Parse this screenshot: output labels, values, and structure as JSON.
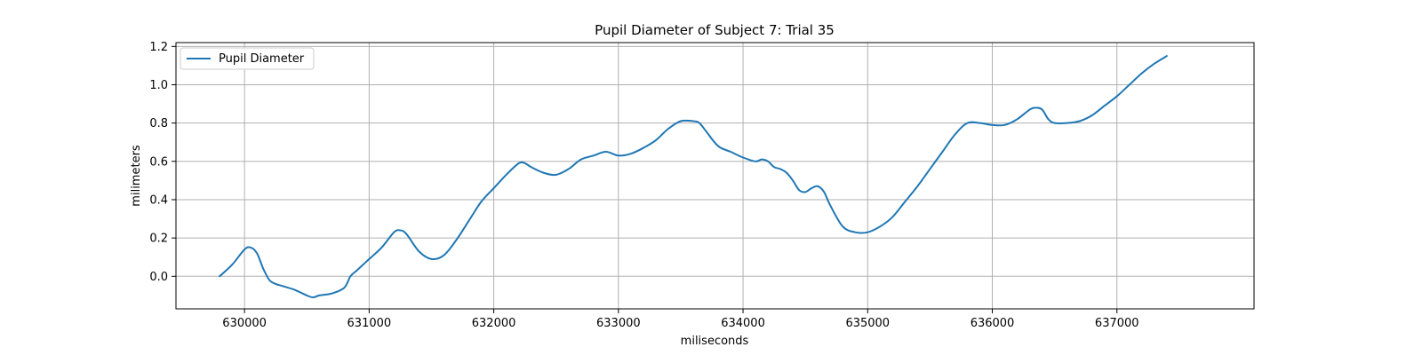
{
  "chart_data": {
    "type": "line",
    "title": "Pupil Diameter of Subject 7: Trial 35",
    "xlabel": "miliseconds",
    "ylabel": "milimeters",
    "xlim": [
      629450,
      638100
    ],
    "ylim": [
      -0.17,
      1.22
    ],
    "xticks": [
      630000,
      631000,
      632000,
      633000,
      634000,
      635000,
      636000,
      637000
    ],
    "xtick_labels": [
      "630000",
      "631000",
      "632000",
      "633000",
      "634000",
      "635000",
      "636000",
      "637000"
    ],
    "yticks": [
      0.0,
      0.2,
      0.4,
      0.6,
      0.8,
      1.0,
      1.2
    ],
    "ytick_labels": [
      "0.0",
      "0.2",
      "0.4",
      "0.6",
      "0.8",
      "1.0",
      "1.2"
    ],
    "grid": true,
    "legend": {
      "placement": "top-left",
      "entries": [
        "Pupil Diameter"
      ]
    },
    "series": [
      {
        "name": "Pupil Diameter",
        "color": "#1f77b4",
        "x": [
          629800,
          629900,
          630000,
          630050,
          630100,
          630150,
          630200,
          630250,
          630300,
          630400,
          630500,
          630550,
          630600,
          630700,
          630800,
          630850,
          630900,
          630950,
          631000,
          631100,
          631200,
          631250,
          631300,
          631400,
          631500,
          631600,
          631700,
          631800,
          631900,
          632000,
          632100,
          632200,
          632250,
          632300,
          632400,
          632500,
          632600,
          632700,
          632800,
          632900,
          633000,
          633100,
          633200,
          633300,
          633400,
          633500,
          633600,
          633650,
          633700,
          633800,
          633900,
          634000,
          634100,
          634150,
          634200,
          634250,
          634300,
          634350,
          634400,
          634450,
          634500,
          634550,
          634600,
          634650,
          634700,
          634800,
          634900,
          635000,
          635100,
          635200,
          635300,
          635400,
          635500,
          635600,
          635700,
          635800,
          635900,
          636000,
          636100,
          636200,
          636300,
          636350,
          636400,
          636450,
          636500,
          636600,
          636700,
          636800,
          636900,
          637000,
          637100,
          637200,
          637300,
          637400
        ],
        "y": [
          0.0,
          0.06,
          0.14,
          0.15,
          0.12,
          0.04,
          -0.02,
          -0.04,
          -0.05,
          -0.07,
          -0.1,
          -0.11,
          -0.1,
          -0.09,
          -0.06,
          0.0,
          0.03,
          0.06,
          0.09,
          0.15,
          0.23,
          0.24,
          0.22,
          0.13,
          0.09,
          0.11,
          0.19,
          0.29,
          0.39,
          0.46,
          0.53,
          0.59,
          0.59,
          0.57,
          0.54,
          0.53,
          0.56,
          0.61,
          0.63,
          0.65,
          0.63,
          0.64,
          0.67,
          0.71,
          0.77,
          0.81,
          0.81,
          0.8,
          0.76,
          0.68,
          0.65,
          0.62,
          0.6,
          0.61,
          0.6,
          0.57,
          0.56,
          0.54,
          0.5,
          0.45,
          0.44,
          0.46,
          0.47,
          0.44,
          0.37,
          0.26,
          0.23,
          0.23,
          0.26,
          0.31,
          0.39,
          0.47,
          0.56,
          0.65,
          0.74,
          0.8,
          0.8,
          0.79,
          0.79,
          0.82,
          0.87,
          0.88,
          0.87,
          0.82,
          0.8,
          0.8,
          0.81,
          0.84,
          0.89,
          0.94,
          1.0,
          1.06,
          1.11,
          1.15
        ]
      }
    ]
  }
}
